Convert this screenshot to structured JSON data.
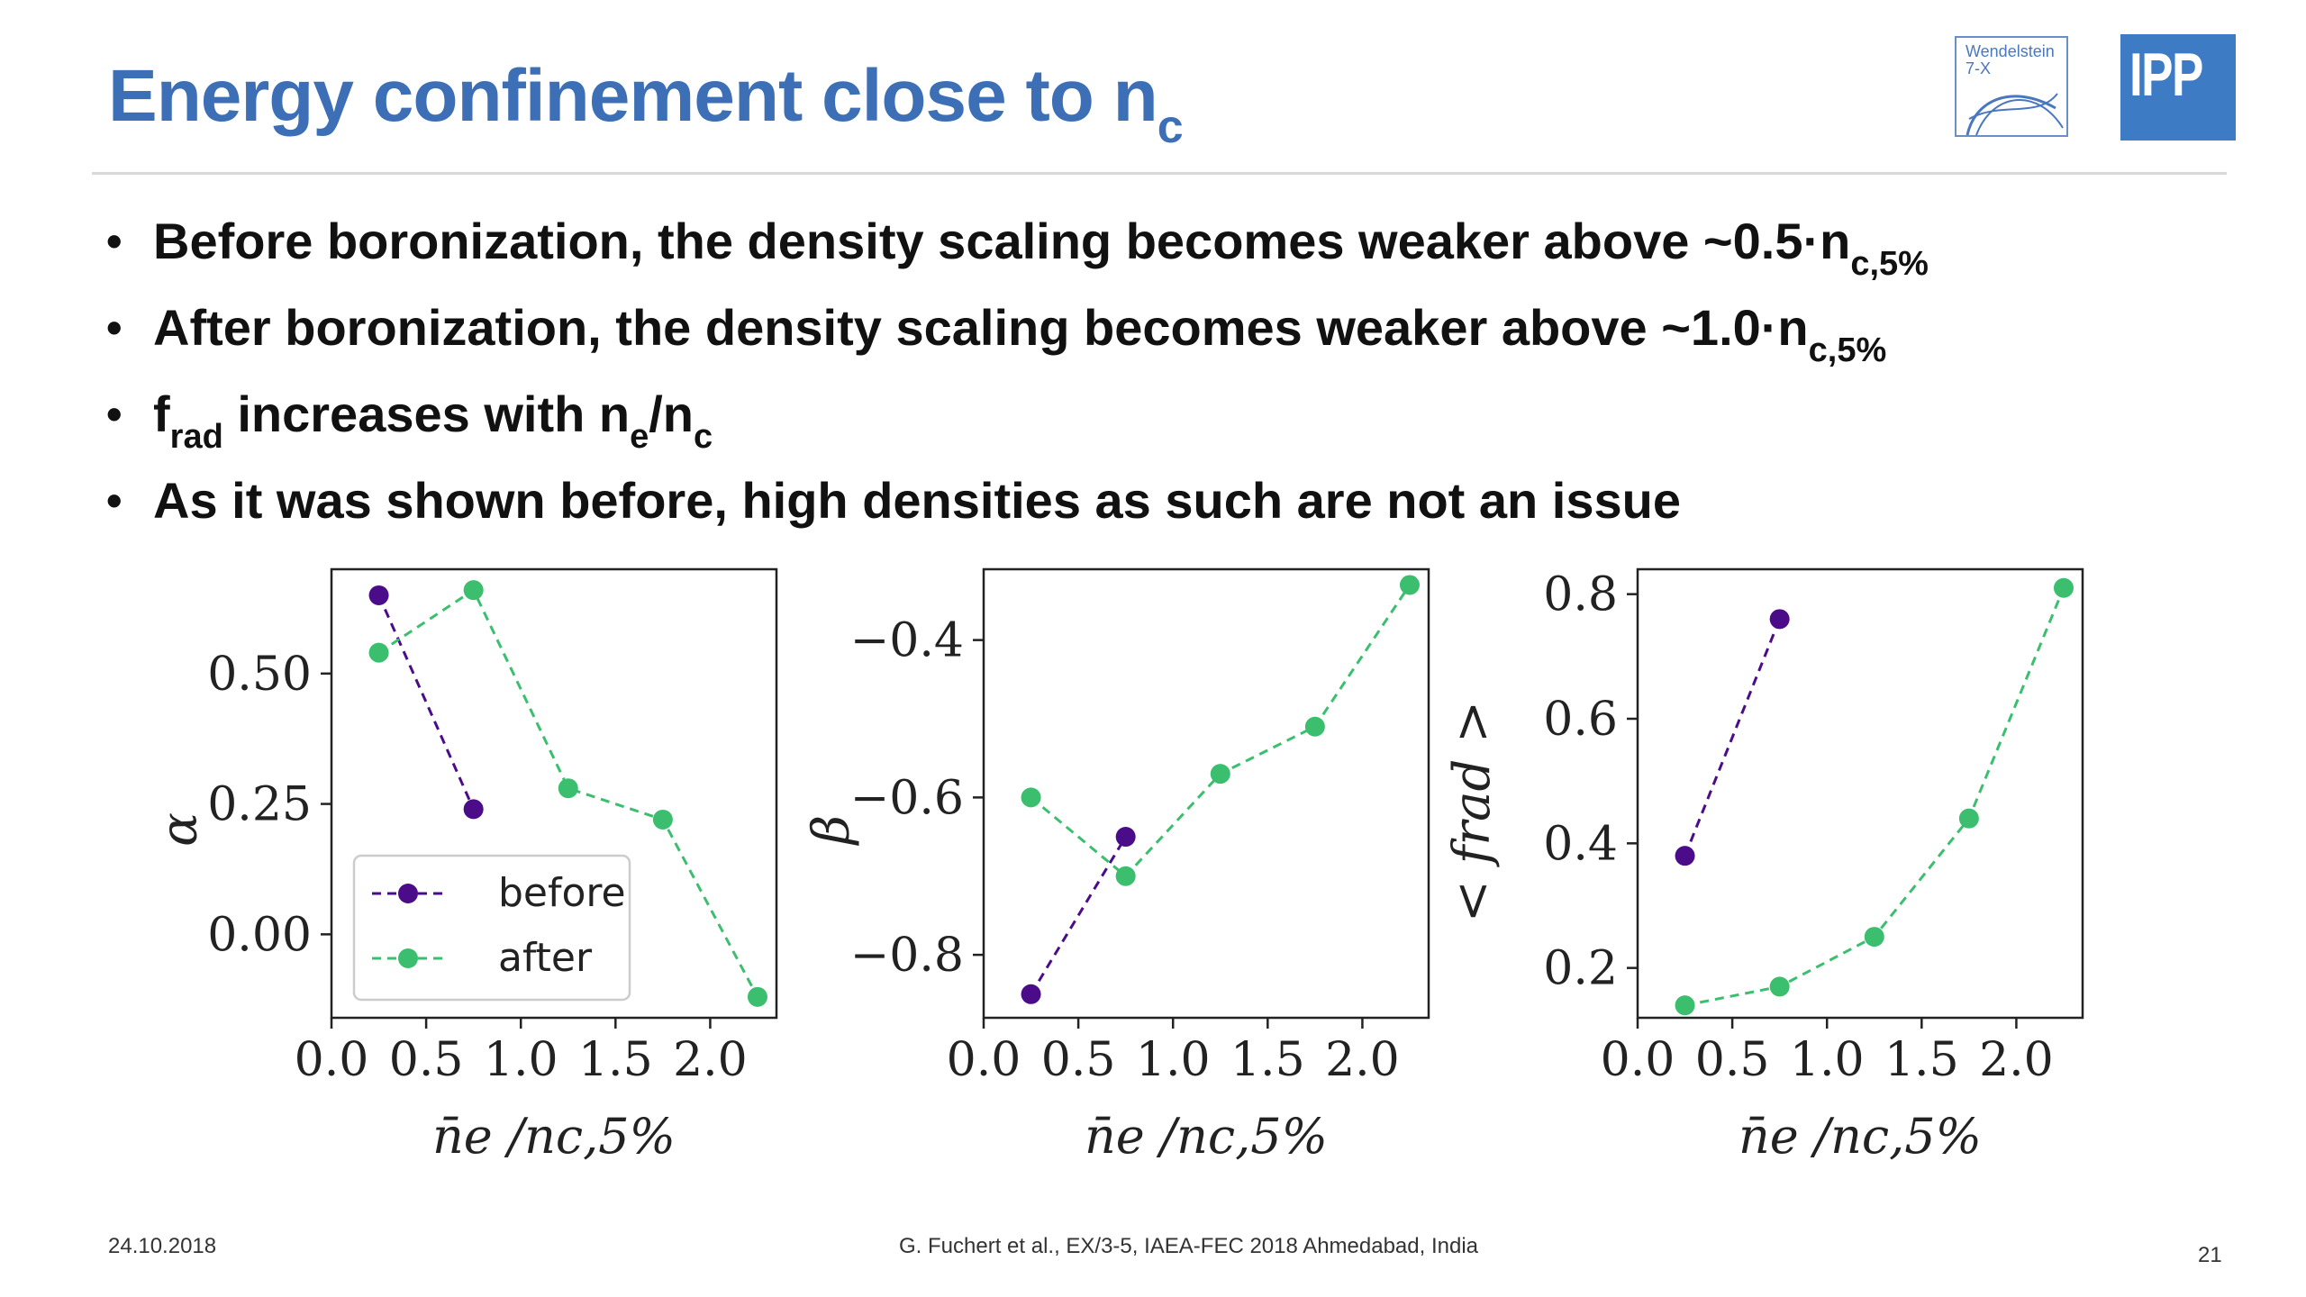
{
  "slide": {
    "title": "Energy confinement close to n",
    "title_sub": "c",
    "logos": {
      "w7x_line1": "Wendelstein",
      "w7x_line2": "7-X",
      "ipp": "IPP"
    },
    "bullets": [
      {
        "text": "Before boronization, the density scaling becomes weaker above ~0.5·n",
        "sub": "c,5%"
      },
      {
        "text": "After boronization, the density scaling becomes weaker above ~1.0·n",
        "sub": "c,5%"
      },
      {
        "text": "f",
        "sub": "rad",
        "text2": " increases with n",
        "sub2": "e",
        "text3": "/n",
        "sub3": "c"
      },
      {
        "text": "As it was shown before, high densities as such are not an issue"
      }
    ],
    "footer": {
      "date": "24.10.2018",
      "citation": "G. Fuchert et al., EX/3-5, IAEA-FEC 2018 Ahmedabad, India",
      "page": "21"
    }
  },
  "colors": {
    "before": "#4b0c8a",
    "after": "#3bbf6f",
    "accent": "#3d6fb6"
  },
  "chart_data": [
    {
      "type": "line",
      "xlabel": "n̄e /nc,5%",
      "ylabel": "α",
      "xlim": [
        0.0,
        2.35
      ],
      "ylim": [
        -0.16,
        0.7
      ],
      "xticks": [
        "0.0",
        "0.5",
        "1.0",
        "1.5",
        "2.0"
      ],
      "yticks": [
        "0.00",
        "0.25",
        "0.50"
      ],
      "legend": "lower-left",
      "grid": false,
      "series": [
        {
          "name": "before",
          "x": [
            0.25,
            0.75
          ],
          "y": [
            0.65,
            0.24
          ]
        },
        {
          "name": "after",
          "x": [
            0.25,
            0.75,
            1.25,
            1.75,
            2.25
          ],
          "y": [
            0.54,
            0.66,
            0.28,
            0.22,
            -0.12
          ]
        }
      ]
    },
    {
      "type": "line",
      "xlabel": "n̄e /nc,5%",
      "ylabel": "β",
      "xlim": [
        0.0,
        2.35
      ],
      "ylim": [
        -0.88,
        -0.31
      ],
      "xticks": [
        "0.0",
        "0.5",
        "1.0",
        "1.5",
        "2.0"
      ],
      "yticks": [
        "−0.8",
        "−0.6",
        "−0.4"
      ],
      "grid": false,
      "series": [
        {
          "name": "before",
          "x": [
            0.25,
            0.75
          ],
          "y": [
            -0.85,
            -0.65
          ]
        },
        {
          "name": "after",
          "x": [
            0.25,
            0.75,
            1.25,
            1.75,
            2.25
          ],
          "y": [
            -0.6,
            -0.7,
            -0.57,
            -0.51,
            -0.33
          ]
        }
      ]
    },
    {
      "type": "line",
      "xlabel": "n̄e /nc,5%",
      "ylabel": "< frad >",
      "xlim": [
        0.0,
        2.35
      ],
      "ylim": [
        0.12,
        0.84
      ],
      "xticks": [
        "0.0",
        "0.5",
        "1.0",
        "1.5",
        "2.0"
      ],
      "yticks": [
        "0.2",
        "0.4",
        "0.6",
        "0.8"
      ],
      "grid": false,
      "series": [
        {
          "name": "before",
          "x": [
            0.25,
            0.75
          ],
          "y": [
            0.38,
            0.76
          ]
        },
        {
          "name": "after",
          "x": [
            0.25,
            0.75,
            1.25,
            1.75,
            2.25
          ],
          "y": [
            0.14,
            0.17,
            0.25,
            0.44,
            0.81
          ]
        }
      ]
    }
  ]
}
